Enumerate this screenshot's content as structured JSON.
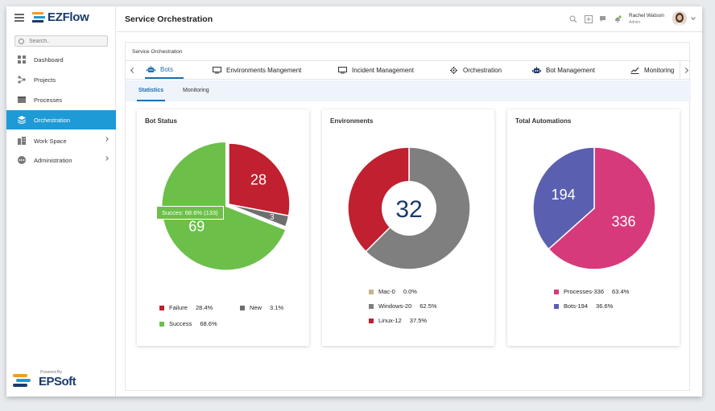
{
  "app": {
    "logo": "EZFlow",
    "powered_label": "Powered By",
    "powered_name": "EPSoft"
  },
  "sidebar": {
    "search_placeholder": "Search..",
    "items": [
      {
        "label": "Dashboard",
        "icon": "dashboard-icon"
      },
      {
        "label": "Projects",
        "icon": "projects-icon"
      },
      {
        "label": "Processes",
        "icon": "processes-icon"
      },
      {
        "label": "Orchestration",
        "icon": "orchestration-icon",
        "active": true
      },
      {
        "label": "Work Space",
        "icon": "workspace-icon",
        "has_children": true
      },
      {
        "label": "Administration",
        "icon": "administration-icon",
        "has_children": true
      }
    ]
  },
  "header": {
    "title": "Service Orchestration",
    "user_name": "Rachel Watson",
    "user_role": "Admin"
  },
  "main": {
    "breadcrumb": "Service Orchestration",
    "tabs": [
      {
        "label": "Bots",
        "icon": "bot-icon",
        "active": true
      },
      {
        "label": "Environments Mangement",
        "icon": "monitor-icon"
      },
      {
        "label": "Incident Management",
        "icon": "monitor-icon"
      },
      {
        "label": "Orchestration",
        "icon": "gear-icon"
      },
      {
        "label": "Bot Management",
        "icon": "bot-icon"
      },
      {
        "label": "Monitoring",
        "icon": "chart-line-icon"
      }
    ],
    "subtabs": [
      {
        "label": "Statistics",
        "active": true
      },
      {
        "label": "Monitoring"
      }
    ]
  },
  "colors": {
    "accent": "#1e9ad6",
    "failure": "#c0202f",
    "new": "#6e6e6e",
    "success": "#6cc04a",
    "mac": "#c8b48a",
    "windows": "#7f7f7f",
    "linux": "#c0202f",
    "processes": "#d63a7a",
    "bots": "#5a5fb0"
  },
  "chart_data": [
    {
      "type": "pie",
      "title": "Bot Status",
      "slices": [
        {
          "label": "Failure",
          "value": 28,
          "percent": "28.4%",
          "color": "#c0202f"
        },
        {
          "label": "New",
          "value": 3,
          "percent": "3.1%",
          "color": "#6e6e6e"
        },
        {
          "label": "Success",
          "value": 69,
          "percent": "68.6%",
          "color": "#6cc04a"
        }
      ],
      "tooltip": "Succes: 68.6% (133)",
      "legend": "bottom"
    },
    {
      "type": "pie",
      "donut": true,
      "title": "Environments",
      "center_label": "32",
      "slices": [
        {
          "label": "Mac-0",
          "value": 0,
          "percent": "0.0%",
          "color": "#c8b48a"
        },
        {
          "label": "Windows-20",
          "value": 20,
          "percent": "62.5%",
          "color": "#7f7f7f"
        },
        {
          "label": "Linux-12",
          "value": 12,
          "percent": "37.5%",
          "color": "#c0202f"
        }
      ],
      "legend": "bottom"
    },
    {
      "type": "pie",
      "title": "Total Automations",
      "slices": [
        {
          "label": "Processes-336",
          "value": 336,
          "display": "336",
          "percent": "63.4%",
          "color": "#d63a7a"
        },
        {
          "label": "Bots-194",
          "value": 194,
          "display": "194",
          "percent": "36.6%",
          "color": "#5a5fb0"
        }
      ],
      "legend": "bottom"
    }
  ]
}
